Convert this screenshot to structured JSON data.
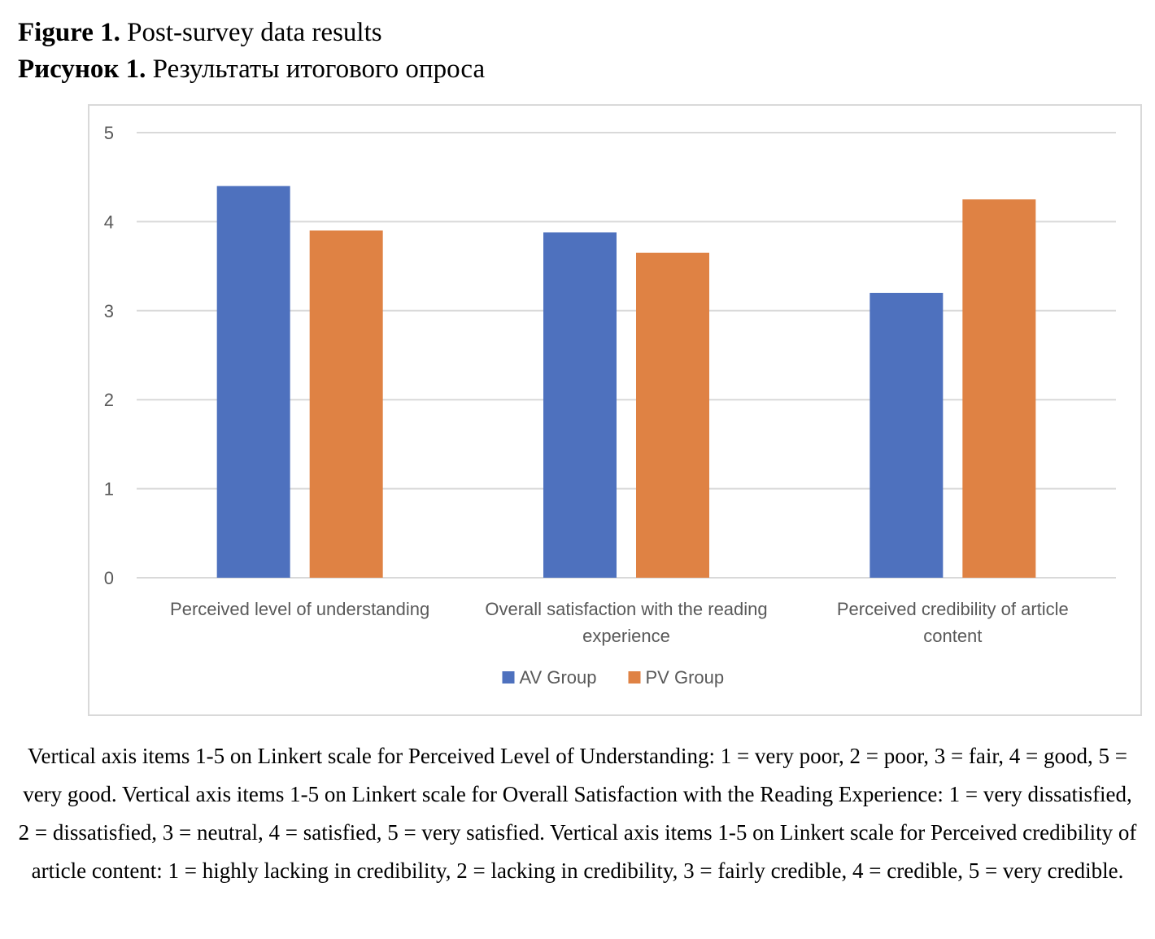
{
  "figure": {
    "label_en": "Figure 1.",
    "title_en": " Post-survey data results",
    "label_ru": "Рисунок 1.",
    "title_ru": " Результаты итогового опроса"
  },
  "chart_data": {
    "type": "bar",
    "categories": [
      [
        "Perceived level of understanding"
      ],
      [
        "Overall satisfaction with the reading",
        "experience"
      ],
      [
        "Perceived credibility of article",
        "content"
      ]
    ],
    "series": [
      {
        "name": "AV Group",
        "color": "#4e71be",
        "values": [
          4.4,
          3.88,
          3.2
        ]
      },
      {
        "name": "PV Group",
        "color": "#df8244",
        "values": [
          3.9,
          3.65,
          4.25
        ]
      }
    ],
    "yticks": [
      "0",
      "1",
      "2",
      "3",
      "4",
      "5"
    ],
    "ylim": [
      0,
      5
    ],
    "grid": true,
    "legend": "bottom-center",
    "title": "",
    "xlabel": "",
    "ylabel": ""
  },
  "caption": "Vertical axis items 1-5 on Linkert scale for Perceived Level of Understanding: 1 = very poor, 2 = poor, 3 = fair, 4 = good, 5 = very good. Vertical axis items 1-5 on Linkert scale for Overall Satisfaction with the Reading Experience: 1 = very dissatisfied, 2 = dissatisfied, 3 = neutral, 4 = satisfied, 5 = very satisfied. Vertical axis items 1-5 on Linkert scale for Perceived credibility of article content: 1 = highly lacking in credibility, 2 = lacking in credibility, 3 = fairly credible, 4 = credible, 5 = very credible."
}
